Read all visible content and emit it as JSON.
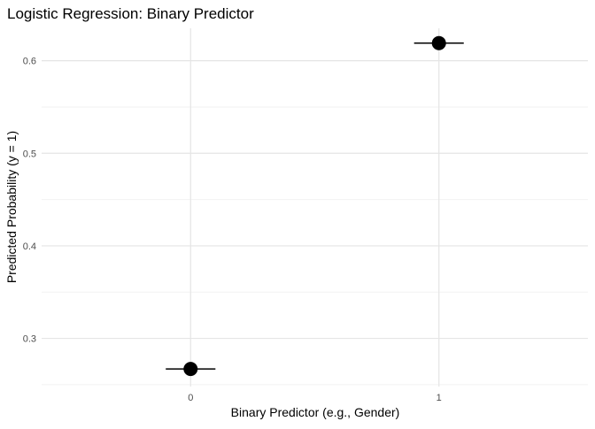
{
  "chart_data": {
    "type": "scatter",
    "title": "Logistic Regression: Binary Predictor",
    "xlabel": "Binary Predictor (e.g., Gender)",
    "ylabel": "Predicted Probability (y = 1)",
    "x_categories": [
      "0",
      "1"
    ],
    "xlim": [
      -0.6,
      1.6
    ],
    "ylim": [
      0.248,
      0.635
    ],
    "y_ticks": [
      0.3,
      0.4,
      0.5,
      0.6
    ],
    "y_tick_labels": [
      "0.3",
      "0.4",
      "0.5",
      "0.6"
    ],
    "points": [
      {
        "x": 0,
        "y": 0.267,
        "error_bar_half_width": 0.1
      },
      {
        "x": 1,
        "y": 0.619,
        "error_bar_half_width": 0.1
      }
    ],
    "grid": true,
    "legend": "none",
    "colors": {
      "point": "#000000",
      "major_grid": "#e5e5e5",
      "minor_grid": "#f2f2f2",
      "text": "#000000",
      "tick_text": "#4d4d4d"
    }
  }
}
